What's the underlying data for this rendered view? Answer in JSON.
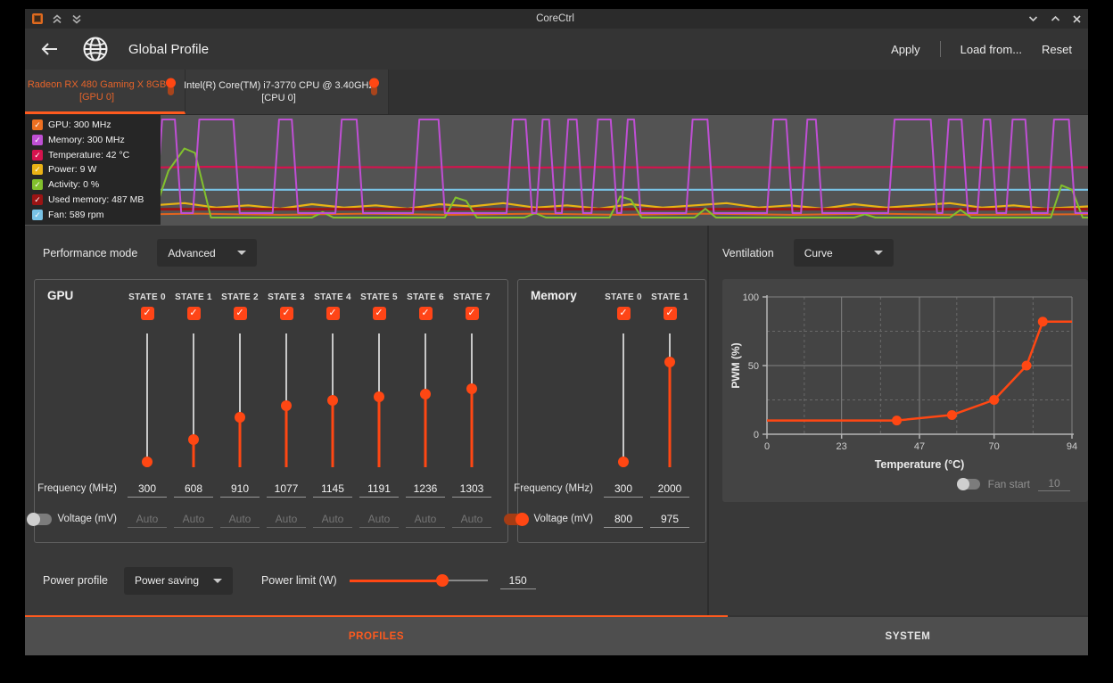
{
  "window": {
    "title": "CoreCtrl"
  },
  "header": {
    "title": "Global Profile",
    "apply": "Apply",
    "load_from": "Load from...",
    "reset": "Reset"
  },
  "device_tabs": [
    {
      "title": "Radeon RX 480 Gaming X 8GB",
      "subtitle": "[GPU 0]",
      "active": true
    },
    {
      "title": "Intel(R) Core(TM) i7-3770 CPU @ 3.40GHz",
      "subtitle": "[CPU 0]",
      "active": false
    }
  ],
  "sensors_legend": [
    {
      "label": "GPU: 300 MHz",
      "color": "#ee7021",
      "checked": true
    },
    {
      "label": "Memory: 300 MHz",
      "color": "#bf4fd4",
      "checked": true
    },
    {
      "label": "Temperature: 42 °C",
      "color": "#d5134e",
      "checked": true
    },
    {
      "label": "Power: 9 W",
      "color": "#eab215",
      "checked": true
    },
    {
      "label": "Activity: 0 %",
      "color": "#82c12d",
      "checked": true
    },
    {
      "label": "Used memory: 487 MB",
      "color": "#9b1414",
      "checked": true
    },
    {
      "label": "Fan: 589 rpm",
      "color": "#79c3e6",
      "checked": true
    }
  ],
  "monitor_chart": {
    "type": "line",
    "note": "time-series sensor graph, points in percent of plot area, y=0 top",
    "series": [
      {
        "name": "gpu-clock",
        "color": "#e2641f",
        "width": 2,
        "points": [
          [
            0,
            88.5
          ],
          [
            8,
            89.5
          ],
          [
            16,
            88.5
          ],
          [
            24,
            89.5
          ],
          [
            32,
            88.5
          ],
          [
            40,
            89.5
          ],
          [
            48,
            88.5
          ],
          [
            56,
            89.5
          ],
          [
            64,
            88.5
          ],
          [
            72,
            89.5
          ],
          [
            80,
            88.5
          ],
          [
            88,
            89.5
          ],
          [
            100,
            89
          ]
        ]
      },
      {
        "name": "power",
        "color": "#e8b414",
        "width": 2.2,
        "points": [
          [
            0,
            81
          ],
          [
            3,
            83
          ],
          [
            6,
            80
          ],
          [
            9,
            84
          ],
          [
            12,
            81
          ],
          [
            15,
            79
          ],
          [
            18,
            83
          ],
          [
            21,
            81
          ],
          [
            24,
            84
          ],
          [
            27,
            80
          ],
          [
            30,
            83
          ],
          [
            33,
            81
          ],
          [
            36,
            84
          ],
          [
            39,
            80
          ],
          [
            42,
            82
          ],
          [
            45,
            79
          ],
          [
            48,
            83
          ],
          [
            51,
            81
          ],
          [
            54,
            84
          ],
          [
            57,
            80
          ],
          [
            60,
            83
          ],
          [
            63,
            81
          ],
          [
            66,
            79
          ],
          [
            69,
            83
          ],
          [
            72,
            81
          ],
          [
            75,
            84
          ],
          [
            78,
            80
          ],
          [
            81,
            83
          ],
          [
            84,
            81
          ],
          [
            87,
            79
          ],
          [
            90,
            83
          ],
          [
            93,
            81
          ],
          [
            96,
            84
          ],
          [
            100,
            82
          ]
        ]
      },
      {
        "name": "used-memory",
        "color": "#9b1414",
        "width": 3,
        "points": [
          [
            0,
            84.5
          ],
          [
            100,
            84.5
          ]
        ]
      },
      {
        "name": "fan",
        "color": "#79c3e6",
        "width": 2.2,
        "points": [
          [
            0,
            67
          ],
          [
            100,
            67
          ]
        ]
      },
      {
        "name": "temperature",
        "color": "#d5134e",
        "width": 2.2,
        "points": [
          [
            0,
            46.8
          ],
          [
            6,
            46.5
          ],
          [
            12,
            47
          ],
          [
            18,
            46.4
          ],
          [
            24,
            47.1
          ],
          [
            30,
            46.6
          ],
          [
            36,
            47
          ],
          [
            42,
            46.5
          ],
          [
            48,
            47.2
          ],
          [
            54,
            46.7
          ],
          [
            60,
            47
          ],
          [
            66,
            46.6
          ],
          [
            72,
            47.1
          ],
          [
            78,
            46.8
          ],
          [
            84,
            46.4
          ],
          [
            90,
            47
          ],
          [
            96,
            46.8
          ],
          [
            100,
            46.9
          ]
        ]
      },
      {
        "name": "activity",
        "color": "#82c12d",
        "width": 2,
        "points": [
          [
            0,
            92
          ],
          [
            12,
            92
          ],
          [
            13.5,
            50
          ],
          [
            15,
            30
          ],
          [
            16,
            34
          ],
          [
            17.5,
            92
          ],
          [
            27,
            92
          ],
          [
            28,
            87
          ],
          [
            29,
            92
          ],
          [
            39.5,
            92
          ],
          [
            40.5,
            74
          ],
          [
            41.5,
            77
          ],
          [
            42.5,
            92
          ],
          [
            47,
            92
          ],
          [
            48,
            88
          ],
          [
            49,
            92
          ],
          [
            55,
            92
          ],
          [
            56,
            73
          ],
          [
            57,
            76
          ],
          [
            58,
            92
          ],
          [
            63,
            92
          ],
          [
            64,
            84
          ],
          [
            65,
            92
          ],
          [
            78,
            92
          ],
          [
            79,
            89
          ],
          [
            80,
            92
          ],
          [
            87,
            92
          ],
          [
            88,
            85
          ],
          [
            89,
            92
          ],
          [
            96.5,
            92
          ],
          [
            97.5,
            63
          ],
          [
            98.5,
            67
          ],
          [
            99.5,
            92
          ],
          [
            100,
            92
          ]
        ]
      },
      {
        "name": "memory-clock",
        "color": "#bf4fd4",
        "width": 2,
        "points": [
          [
            0,
            88
          ],
          [
            12.3,
            88
          ],
          [
            12.9,
            4
          ],
          [
            14.1,
            4
          ],
          [
            14.7,
            88
          ],
          [
            15.8,
            88
          ],
          [
            16.4,
            4
          ],
          [
            19.6,
            4
          ],
          [
            20.2,
            88
          ],
          [
            23.3,
            88
          ],
          [
            23.9,
            4
          ],
          [
            25.1,
            4
          ],
          [
            25.7,
            88
          ],
          [
            29.2,
            88
          ],
          [
            29.8,
            4
          ],
          [
            31.2,
            4
          ],
          [
            31.8,
            88
          ],
          [
            36.5,
            88
          ],
          [
            37.1,
            4
          ],
          [
            38.9,
            4
          ],
          [
            39.5,
            88
          ],
          [
            45.3,
            88
          ],
          [
            45.9,
            4
          ],
          [
            47.1,
            4
          ],
          [
            47.7,
            88
          ],
          [
            48.1,
            88
          ],
          [
            48.7,
            4
          ],
          [
            49.3,
            4
          ],
          [
            49.9,
            88
          ],
          [
            50.5,
            88
          ],
          [
            51.1,
            4
          ],
          [
            51.9,
            4
          ],
          [
            52.5,
            88
          ],
          [
            53.3,
            88
          ],
          [
            53.9,
            4
          ],
          [
            55.1,
            4
          ],
          [
            55.7,
            88
          ],
          [
            56.1,
            88
          ],
          [
            56.7,
            4
          ],
          [
            57.3,
            4
          ],
          [
            57.9,
            88
          ],
          [
            62.2,
            88
          ],
          [
            62.8,
            4
          ],
          [
            64.2,
            4
          ],
          [
            64.8,
            88
          ],
          [
            69.8,
            88
          ],
          [
            70.4,
            4
          ],
          [
            71.6,
            4
          ],
          [
            72.2,
            88
          ],
          [
            73,
            88
          ],
          [
            73.6,
            4
          ],
          [
            74.4,
            4
          ],
          [
            75,
            88
          ],
          [
            81.2,
            88
          ],
          [
            81.8,
            4
          ],
          [
            85.2,
            4
          ],
          [
            85.8,
            88
          ],
          [
            86.3,
            88
          ],
          [
            86.9,
            4
          ],
          [
            88.1,
            4
          ],
          [
            88.7,
            88
          ],
          [
            89.6,
            88
          ],
          [
            90.2,
            4
          ],
          [
            90.8,
            4
          ],
          [
            91.4,
            88
          ],
          [
            92.3,
            88
          ],
          [
            92.9,
            4
          ],
          [
            94.1,
            4
          ],
          [
            94.7,
            88
          ],
          [
            96.2,
            88
          ],
          [
            96.8,
            4
          ],
          [
            98.2,
            4
          ],
          [
            98.8,
            88
          ],
          [
            100,
            88
          ]
        ]
      }
    ]
  },
  "performance_mode": {
    "label": "Performance mode",
    "value": "Advanced"
  },
  "gpu_box": {
    "title": "GPU",
    "frequency_label": "Frequency (MHz)",
    "voltage_label": "Voltage (mV)",
    "voltage_enabled": false,
    "states": [
      {
        "name": "STATE 0",
        "checked": true,
        "frequency": "300",
        "voltage": "Auto"
      },
      {
        "name": "STATE 1",
        "checked": true,
        "frequency": "608",
        "voltage": "Auto"
      },
      {
        "name": "STATE 2",
        "checked": true,
        "frequency": "910",
        "voltage": "Auto"
      },
      {
        "name": "STATE 3",
        "checked": true,
        "frequency": "1077",
        "voltage": "Auto"
      },
      {
        "name": "STATE 4",
        "checked": true,
        "frequency": "1145",
        "voltage": "Auto"
      },
      {
        "name": "STATE 5",
        "checked": true,
        "frequency": "1191",
        "voltage": "Auto"
      },
      {
        "name": "STATE 6",
        "checked": true,
        "frequency": "1236",
        "voltage": "Auto"
      },
      {
        "name": "STATE 7",
        "checked": true,
        "frequency": "1303",
        "voltage": "Auto"
      }
    ]
  },
  "memory_box": {
    "title": "Memory",
    "frequency_label": "Frequency (MHz)",
    "voltage_label": "Voltage (mV)",
    "voltage_enabled": true,
    "states": [
      {
        "name": "STATE 0",
        "checked": true,
        "frequency": "300",
        "voltage": "800"
      },
      {
        "name": "STATE 1",
        "checked": true,
        "frequency": "2000",
        "voltage": "975"
      }
    ]
  },
  "power": {
    "profile_label": "Power profile",
    "profile_value": "Power saving",
    "limit_label": "Power limit (W)",
    "limit_value": "150"
  },
  "ventilation": {
    "label": "Ventilation",
    "mode_value": "Curve",
    "fan_start_label": "Fan start",
    "fan_start_value": "10",
    "fan_start_enabled": false
  },
  "fan_curve": {
    "type": "line",
    "title": "",
    "xlabel": "Temperature (°C)",
    "ylabel": "PWM (%)",
    "xlim": [
      0,
      94
    ],
    "ylim": [
      0,
      100
    ],
    "x_ticks": [
      0,
      23,
      47,
      70,
      94
    ],
    "y_ticks": [
      0,
      50,
      100
    ],
    "grid": true,
    "line_color": "#ff4713",
    "points": [
      [
        0,
        10
      ],
      [
        40,
        10
      ],
      [
        57,
        14
      ],
      [
        70,
        25
      ],
      [
        80,
        50
      ],
      [
        85,
        82
      ],
      [
        94,
        82
      ]
    ],
    "markers": [
      [
        40,
        10
      ],
      [
        57,
        14
      ],
      [
        70,
        25
      ],
      [
        80,
        50
      ],
      [
        85,
        82
      ]
    ]
  },
  "bottom_tabs": [
    {
      "label": "PROFILES",
      "active": true
    },
    {
      "label": "SYSTEM",
      "active": false
    }
  ]
}
